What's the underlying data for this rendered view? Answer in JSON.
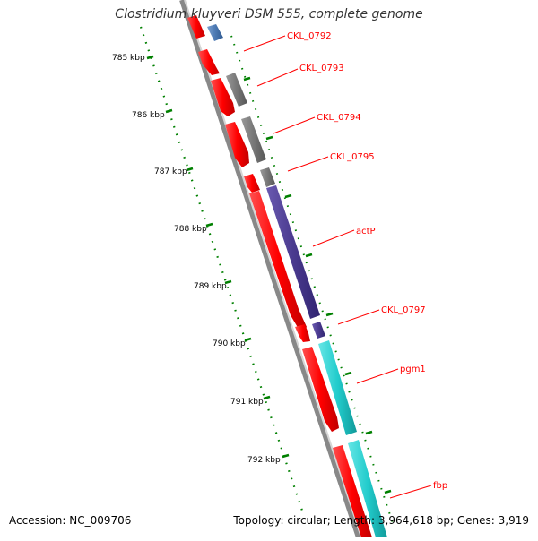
{
  "title": "Clostridium kluyveri DSM 555, complete genome",
  "footer": {
    "accession": "Accession: NC_009706",
    "summary": "Topology: circular; Length: 3,964,618 bp; Genes: 3,919"
  },
  "ruler": {
    "labels": [
      "785 kbp",
      "786 kbp",
      "787 kbp",
      "788 kbp",
      "789 kbp",
      "790 kbp",
      "791 kbp",
      "792 kbp"
    ]
  },
  "genes": [
    {
      "name": "CKL_0792",
      "color": "#ff0000"
    },
    {
      "name": "CKL_0793",
      "color": "#ff0000"
    },
    {
      "name": "CKL_0794",
      "color": "#ff0000"
    },
    {
      "name": "CKL_0795",
      "color": "#ff0000"
    },
    {
      "name": "actP",
      "color": "#ff0000"
    },
    {
      "name": "CKL_0797",
      "color": "#ff0000"
    },
    {
      "name": "pgm1",
      "color": "#ff0000"
    },
    {
      "name": "fbp",
      "color": "#ff0000"
    }
  ],
  "colors": {
    "cds": "#ff0000",
    "gray_feature": "#777777",
    "purple_feature": "#4a3a8f",
    "cyan_feature": "#22cccc",
    "blue_feature": "#4d7ab3",
    "backbone": "#888888",
    "ruler": "#008000",
    "label": "#ff0000"
  }
}
